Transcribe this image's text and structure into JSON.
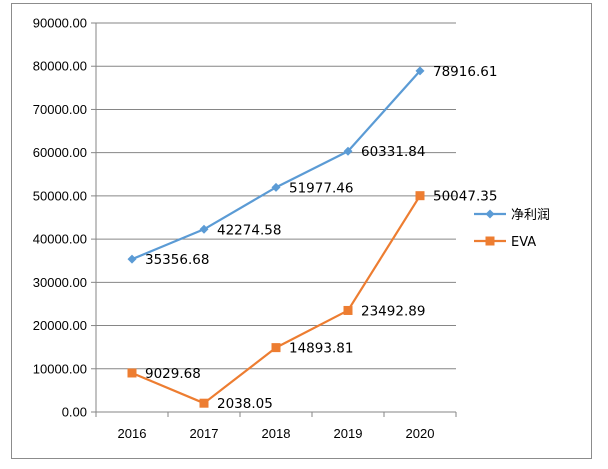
{
  "chart_data": {
    "type": "line",
    "title": "",
    "xlabel": "",
    "ylabel": "",
    "categories": [
      "2016",
      "2017",
      "2018",
      "2019",
      "2020"
    ],
    "ylim": [
      0,
      90000
    ],
    "y_ticks": [
      "0.00",
      "10000.00",
      "20000.00",
      "30000.00",
      "40000.00",
      "50000.00",
      "60000.00",
      "70000.00",
      "80000.00",
      "90000.00"
    ],
    "grid": true,
    "legend_position": "right",
    "series": [
      {
        "name": "净利润",
        "marker": "diamond",
        "color": "#5B9BD5",
        "values": [
          35356.68,
          42274.58,
          51977.46,
          60331.84,
          78916.61
        ],
        "labels": [
          "35356.68",
          "42274.58",
          "51977.46",
          "60331.84",
          "78916.61"
        ]
      },
      {
        "name": "EVA",
        "marker": "square",
        "color": "#ED7D31",
        "values": [
          9029.68,
          2038.05,
          14893.81,
          23492.89,
          50047.35
        ],
        "labels": [
          "9029.68",
          "2038.05",
          "14893.81",
          "23492.89",
          "50047.35"
        ]
      }
    ]
  }
}
